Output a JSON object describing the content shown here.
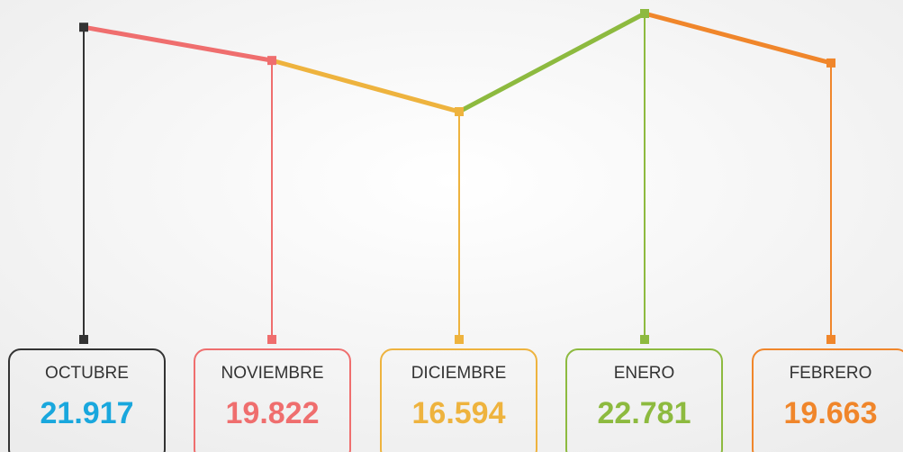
{
  "chart_data": {
    "type": "line",
    "categories": [
      "OCTUBRE",
      "NOVIEMBRE",
      "DICIEMBRE",
      "ENERO",
      "FEBRERO"
    ],
    "values": [
      21917,
      19822,
      16594,
      22781,
      19663
    ],
    "value_labels": [
      "21.917",
      "19.822",
      "16.594",
      "22.781",
      "19.663"
    ],
    "colors": [
      "#333333",
      "#ef6e6e",
      "#eeb33e",
      "#8dba3f",
      "#f0862b"
    ],
    "label_colors": [
      "#19a7dd",
      "#ef6e6e",
      "#eeb33e",
      "#8dba3f",
      "#f0862b"
    ]
  }
}
